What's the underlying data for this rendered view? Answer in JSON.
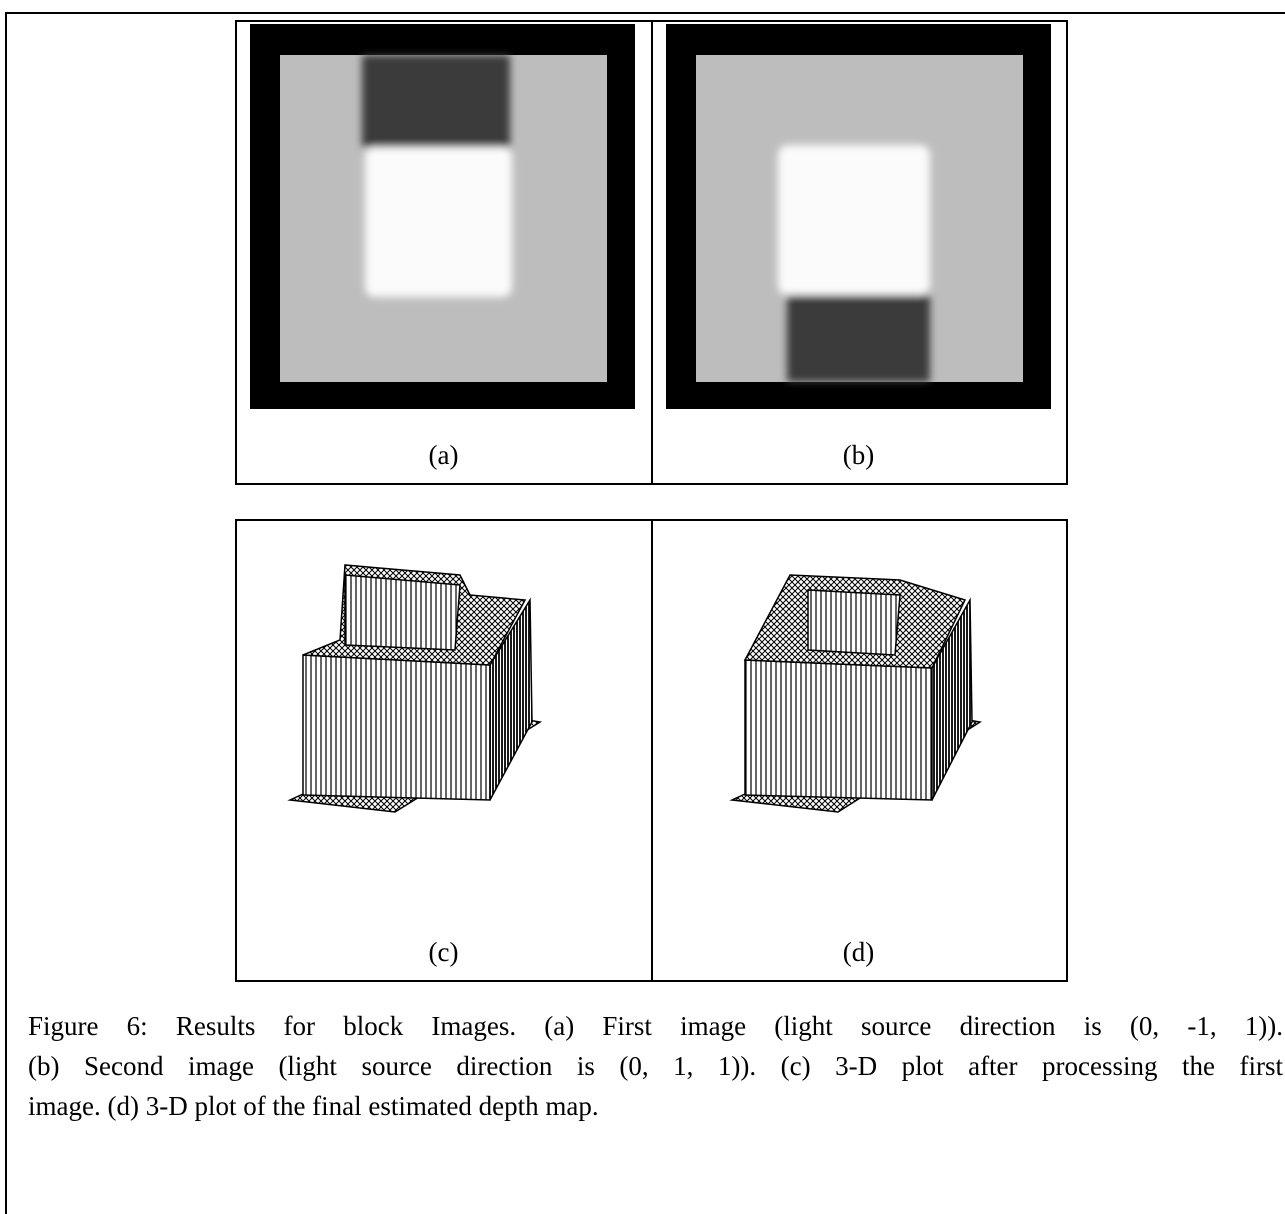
{
  "panels": [
    {
      "label": "(a)"
    },
    {
      "label": "(b)"
    },
    {
      "label": "(c)"
    },
    {
      "label": "(d)"
    }
  ],
  "caption": {
    "lines": [
      "Figure 6: Results for block Images. (a) First image (light source direction is (0, -1, 1)).",
      "(b) Second image (light source direction is (0, 1, 1)). (c) 3-D plot after processing the first",
      "image. (d) 3-D plot of the final estimated depth map."
    ]
  }
}
